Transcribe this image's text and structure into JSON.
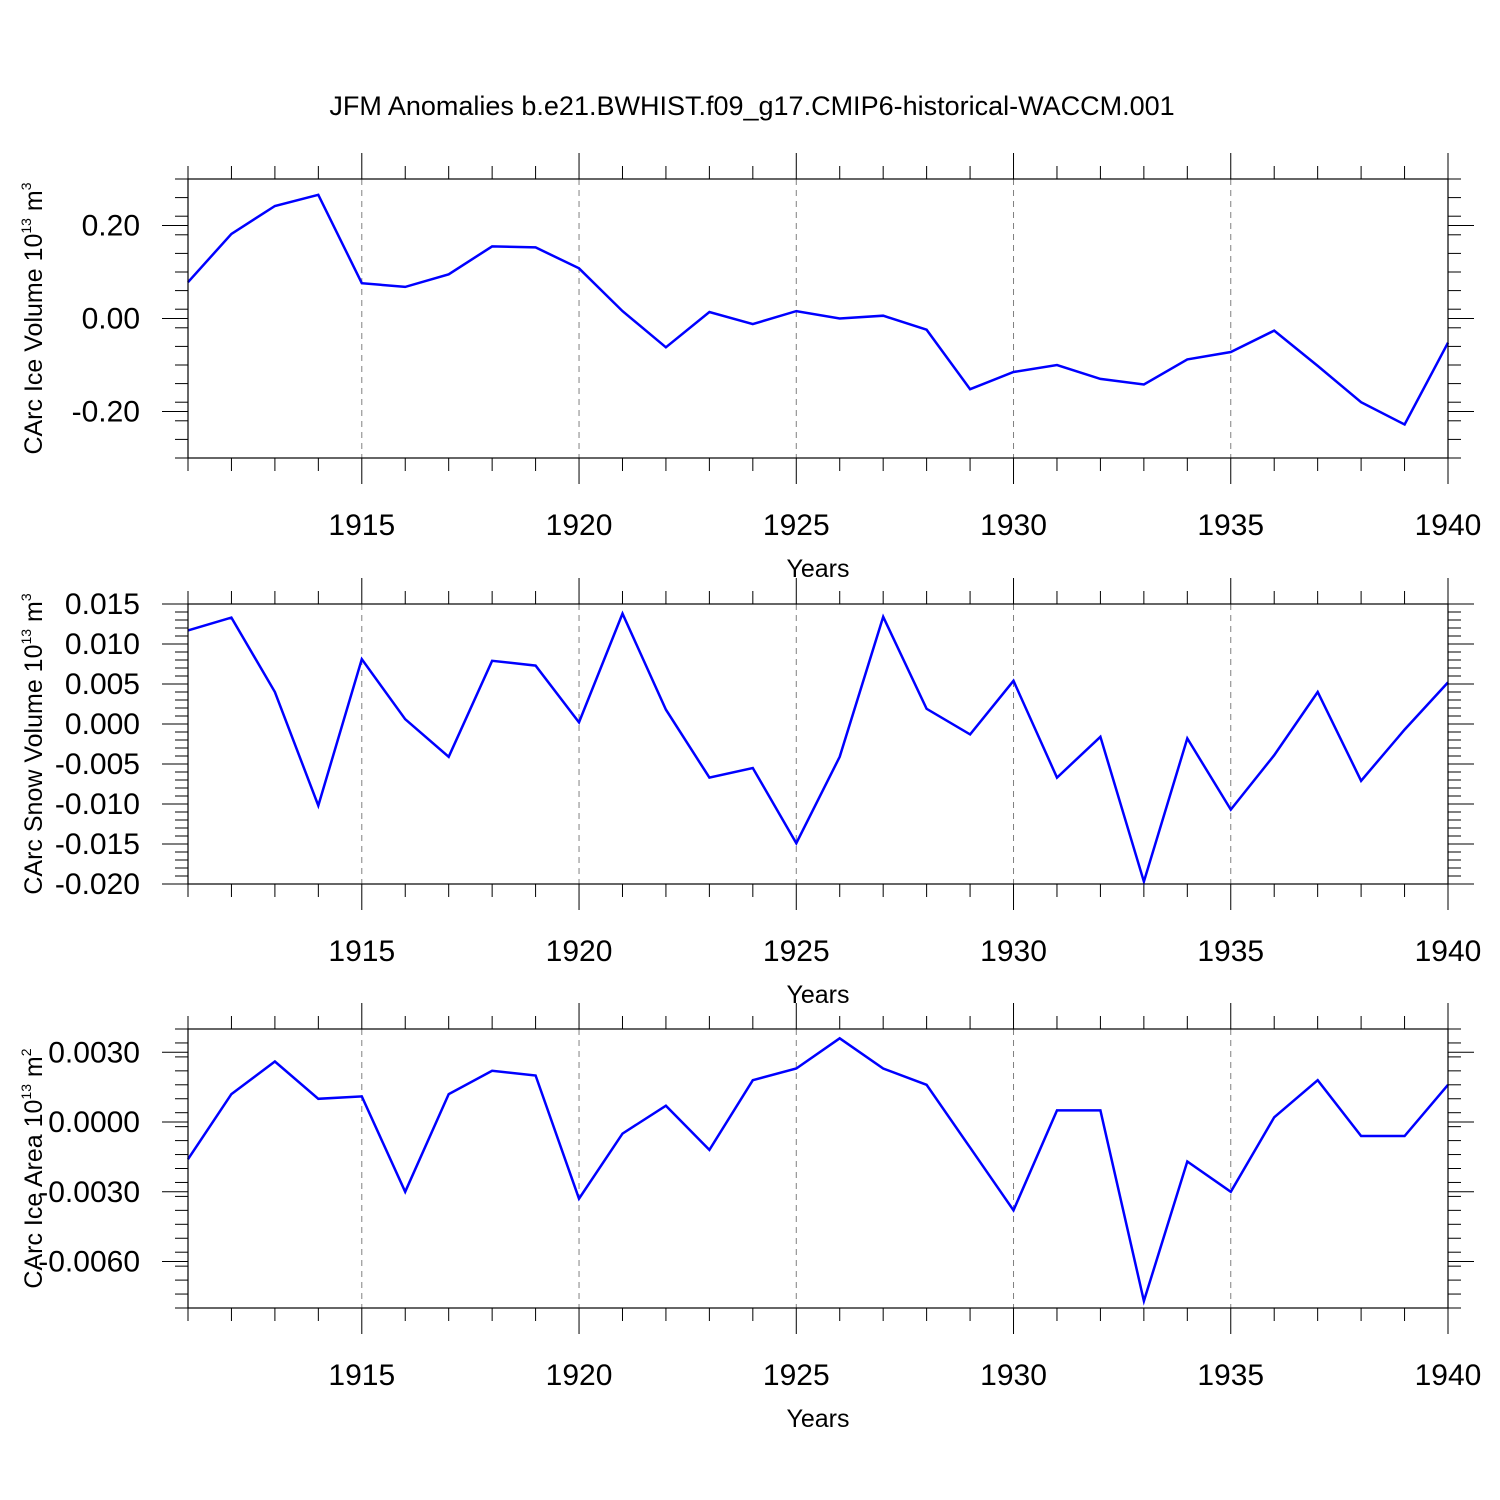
{
  "title": "JFM Anomalies b.e21.BWHIST.f09_g17.CMIP6-historical-WACCM.001",
  "colors": {
    "line": "#0000ff",
    "axis": "#000000",
    "grid": "#808080"
  },
  "chart_data": [
    {
      "type": "line",
      "ylabel_prefix": "CArc Ice Volume 10",
      "ylabel_exp": "13",
      "ylabel_unit": "m",
      "ylabel_unit_exp": "3",
      "xlabel": "Years",
      "xlim": [
        1911,
        1940
      ],
      "ylim": [
        -0.3,
        0.3
      ],
      "xticks": [
        1915,
        1920,
        1925,
        1930,
        1935,
        1940
      ],
      "xtick_labels": [
        "1915",
        "1920",
        "1925",
        "1930",
        "1935",
        "1940"
      ],
      "yticks": [
        -0.2,
        0.0,
        0.2
      ],
      "ytick_labels": [
        "-0.20",
        "0.00",
        "0.20"
      ],
      "yminor_step": 0.04,
      "x": [
        1911,
        1912,
        1913,
        1914,
        1915,
        1916,
        1917,
        1918,
        1919,
        1920,
        1921,
        1922,
        1923,
        1924,
        1925,
        1926,
        1927,
        1928,
        1929,
        1930,
        1931,
        1932,
        1933,
        1934,
        1935,
        1936,
        1937,
        1938,
        1939,
        1940
      ],
      "values": [
        0.078,
        0.182,
        0.242,
        0.266,
        0.076,
        0.068,
        0.095,
        0.155,
        0.153,
        0.108,
        0.016,
        -0.062,
        0.014,
        -0.012,
        0.016,
        0.0,
        0.006,
        -0.024,
        -0.152,
        -0.115,
        -0.1,
        -0.13,
        -0.142,
        -0.088,
        -0.072,
        -0.026,
        -0.102,
        -0.18,
        -0.228,
        -0.052
      ]
    },
    {
      "type": "line",
      "ylabel_prefix": "CArc Snow Volume 10",
      "ylabel_exp": "13",
      "ylabel_unit": "m",
      "ylabel_unit_exp": "3",
      "xlabel": "Years",
      "xlim": [
        1911,
        1940
      ],
      "ylim": [
        -0.02,
        0.015
      ],
      "xticks": [
        1915,
        1920,
        1925,
        1930,
        1935,
        1940
      ],
      "xtick_labels": [
        "1915",
        "1920",
        "1925",
        "1930",
        "1935",
        "1940"
      ],
      "yticks": [
        -0.02,
        -0.015,
        -0.01,
        -0.005,
        0.0,
        0.005,
        0.01,
        0.015
      ],
      "ytick_labels": [
        "-0.020",
        "-0.015",
        "-0.010",
        "-0.005",
        "0.000",
        "0.005",
        "0.010",
        "0.015"
      ],
      "yminor_step": 0.001,
      "x": [
        1911,
        1912,
        1913,
        1914,
        1915,
        1916,
        1917,
        1918,
        1919,
        1920,
        1921,
        1922,
        1923,
        1924,
        1925,
        1926,
        1927,
        1928,
        1929,
        1930,
        1931,
        1932,
        1933,
        1934,
        1935,
        1936,
        1937,
        1938,
        1939,
        1940
      ],
      "values": [
        0.0117,
        0.0133,
        0.004,
        -0.0102,
        0.0081,
        0.0006,
        -0.0041,
        0.0079,
        0.0073,
        0.0002,
        0.0138,
        0.0018,
        -0.0067,
        -0.0055,
        -0.0149,
        -0.0041,
        0.0134,
        0.0019,
        -0.0013,
        0.0054,
        -0.0067,
        -0.0016,
        -0.0197,
        -0.0018,
        -0.0107,
        -0.0039,
        0.004,
        -0.0071,
        -0.0007,
        0.0052
      ]
    },
    {
      "type": "line",
      "ylabel_prefix": "CArc Ice Area 10",
      "ylabel_exp": "13",
      "ylabel_unit": "m",
      "ylabel_unit_exp": "2",
      "xlabel": "Years",
      "xlim": [
        1911,
        1940
      ],
      "ylim": [
        -0.008,
        0.004
      ],
      "xticks": [
        1915,
        1920,
        1925,
        1930,
        1935,
        1940
      ],
      "xtick_labels": [
        "1915",
        "1920",
        "1925",
        "1930",
        "1935",
        "1940"
      ],
      "yticks": [
        -0.006,
        -0.003,
        0.0,
        0.003
      ],
      "ytick_labels": [
        "-0.0060",
        "-0.0030",
        "0.0000",
        "0.0030"
      ],
      "yminor_step": 0.0006,
      "x": [
        1911,
        1912,
        1913,
        1914,
        1915,
        1916,
        1917,
        1918,
        1919,
        1920,
        1921,
        1922,
        1923,
        1924,
        1925,
        1926,
        1927,
        1928,
        1929,
        1930,
        1931,
        1932,
        1933,
        1934,
        1935,
        1936,
        1937,
        1938,
        1939,
        1940
      ],
      "values": [
        -0.0016,
        0.0012,
        0.0026,
        0.001,
        0.0011,
        -0.003,
        0.0012,
        0.0022,
        0.002,
        -0.0033,
        -0.0005,
        0.0007,
        -0.0012,
        0.0018,
        0.0023,
        0.0036,
        0.0023,
        0.0016,
        -0.0011,
        -0.0038,
        0.0005,
        0.0005,
        -0.0077,
        -0.0017,
        -0.003,
        0.0002,
        0.0018,
        -0.0006,
        -0.0006,
        0.0016
      ]
    }
  ]
}
